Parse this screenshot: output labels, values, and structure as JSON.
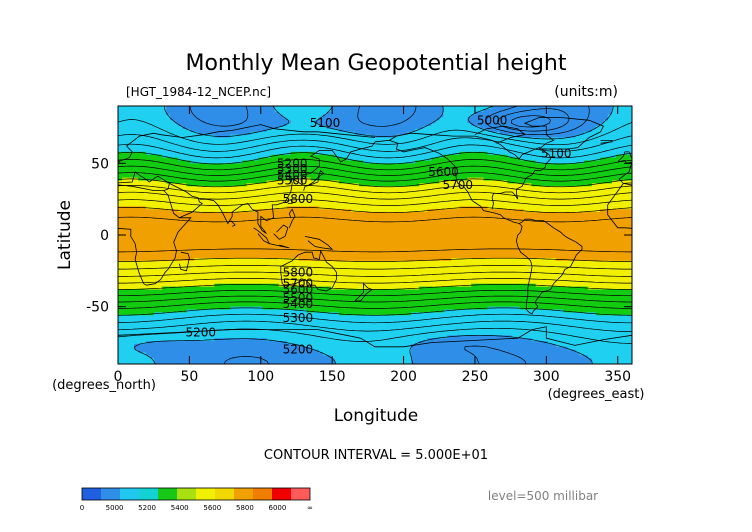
{
  "chart_data": {
    "type": "heatmap",
    "title": "Monthly Mean Geopotential height",
    "file_label": "[HGT_1984-12_NCEP.nc]",
    "units_label": "(units:m)",
    "xlabel": "Longitude",
    "xlabel_units": "(degrees_east)",
    "ylabel": "Latitude",
    "ylabel_units": "(degrees_north)",
    "xlim": [
      0,
      360
    ],
    "ylim": [
      -90,
      90
    ],
    "x_ticks": [
      0,
      50,
      100,
      150,
      200,
      250,
      300,
      350
    ],
    "y_ticks": [
      -50,
      0,
      50
    ],
    "contour_interval_text": "CONTOUR INTERVAL = 5.000E+01",
    "level_text": "level=500 millibar",
    "colorbar": {
      "colors": [
        "#1f5fe0",
        "#2f8fe8",
        "#20c8f0",
        "#12d2d2",
        "#18c818",
        "#a8e010",
        "#f0f000",
        "#f0d800",
        "#f0a000",
        "#f07e00",
        "#f00000",
        "#ff5a5a"
      ],
      "labels": [
        "0",
        "5000",
        "5200",
        "5400",
        "5600",
        "5800",
        "6000",
        "∞"
      ]
    },
    "bands": [
      {
        "range": [
          0,
          5000
        ],
        "color": "#1f5fe0"
      },
      {
        "range": [
          5000,
          5200
        ],
        "color": "#2f8fe8"
      },
      {
        "range": [
          5200,
          5400
        ],
        "color": "#20d0f0"
      },
      {
        "range": [
          5400,
          5600
        ],
        "color": "#12cc12"
      },
      {
        "range": [
          5600,
          5800
        ],
        "color": "#f0f000"
      },
      {
        "range": [
          5800,
          6000
        ],
        "color": "#f0a000"
      }
    ],
    "contour_labels": [
      {
        "text": "5100",
        "lon": 145,
        "lat": 78
      },
      {
        "text": "5000",
        "lon": 262,
        "lat": 80
      },
      {
        "text": "5100",
        "lon": 307,
        "lat": 57
      },
      {
        "text": "5200",
        "lon": 122,
        "lat": 50
      },
      {
        "text": "5300",
        "lon": 122,
        "lat": 46
      },
      {
        "text": "5400",
        "lon": 122,
        "lat": 42
      },
      {
        "text": "5500",
        "lon": 122,
        "lat": 38
      },
      {
        "text": "5600",
        "lon": 228,
        "lat": 44
      },
      {
        "text": "5700",
        "lon": 238,
        "lat": 35
      },
      {
        "text": "5800",
        "lon": 126,
        "lat": 25
      },
      {
        "text": "5800",
        "lon": 126,
        "lat": -26
      },
      {
        "text": "5700",
        "lon": 126,
        "lat": -34
      },
      {
        "text": "5600",
        "lon": 126,
        "lat": -38
      },
      {
        "text": "5500",
        "lon": 126,
        "lat": -44
      },
      {
        "text": "5400",
        "lon": 126,
        "lat": -48
      },
      {
        "text": "5300",
        "lon": 126,
        "lat": -58
      },
      {
        "text": "5200",
        "lon": 58,
        "lat": -68
      },
      {
        "text": "5200",
        "lon": 126,
        "lat": -80
      }
    ]
  }
}
